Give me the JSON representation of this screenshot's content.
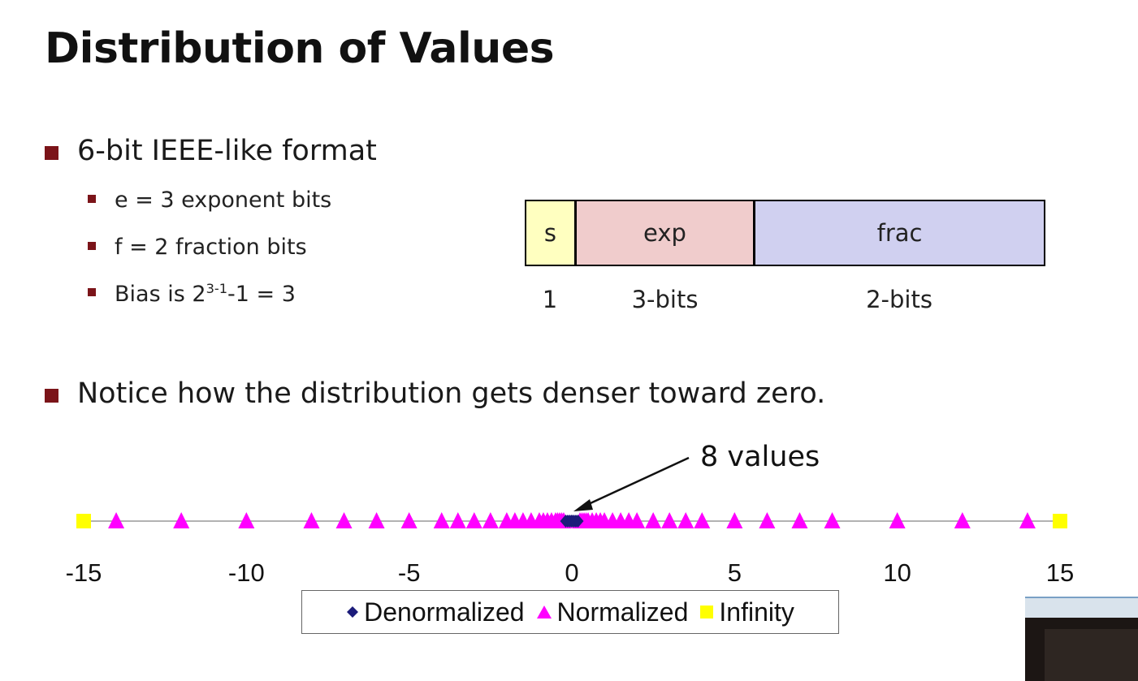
{
  "slide": {
    "title": "Distribution of Values",
    "bullets": [
      {
        "text": "6-bit IEEE-like format"
      },
      {
        "text": "Notice how the distribution gets denser toward zero."
      }
    ],
    "sub_bullets": [
      {
        "text": "e = 3 exponent bits"
      },
      {
        "text": "f = 2 fraction bits"
      },
      {
        "prefix": "Bias is 2",
        "sup": "3-1",
        "suffix": "-1 = 3"
      }
    ]
  },
  "format": {
    "fields": [
      {
        "name": "s",
        "bits_label": "1",
        "color": "#ffffc0"
      },
      {
        "name": "exp",
        "bits_label": "3-bits",
        "color": "#f0cccc"
      },
      {
        "name": "frac",
        "bits_label": "2-bits",
        "color": "#d0d0f0"
      }
    ]
  },
  "chart_data": {
    "type": "scatter",
    "xlim": [
      -15,
      15
    ],
    "xticks": [
      "-15",
      "-10",
      "-5",
      "0",
      "5",
      "10",
      "15"
    ],
    "annotation": "8 values",
    "legend_position": "bottom-center",
    "series": [
      {
        "name": "Denormalized",
        "marker": "diamond",
        "color": "#1c1c7a",
        "x": [
          -0.1875,
          -0.125,
          -0.0625,
          0,
          0,
          0.0625,
          0.125,
          0.1875
        ]
      },
      {
        "name": "Normalized",
        "marker": "triangle",
        "color": "#ff00ff",
        "x": [
          -14,
          -12,
          -10,
          -8,
          -7,
          -6,
          -5,
          -4,
          -3.5,
          -3,
          -2.5,
          -2,
          -1.75,
          -1.5,
          -1.25,
          -1,
          -0.875,
          -0.75,
          -0.625,
          -0.5,
          -0.4375,
          -0.375,
          -0.3125,
          -0.25,
          0.25,
          0.3125,
          0.375,
          0.4375,
          0.5,
          0.625,
          0.75,
          0.875,
          1,
          1.25,
          1.5,
          1.75,
          2,
          2.5,
          3,
          3.5,
          4,
          5,
          6,
          7,
          8,
          10,
          12,
          14
        ]
      },
      {
        "name": "Infinity",
        "marker": "square",
        "color": "#ffff00",
        "x": [
          -15,
          15
        ]
      }
    ]
  }
}
